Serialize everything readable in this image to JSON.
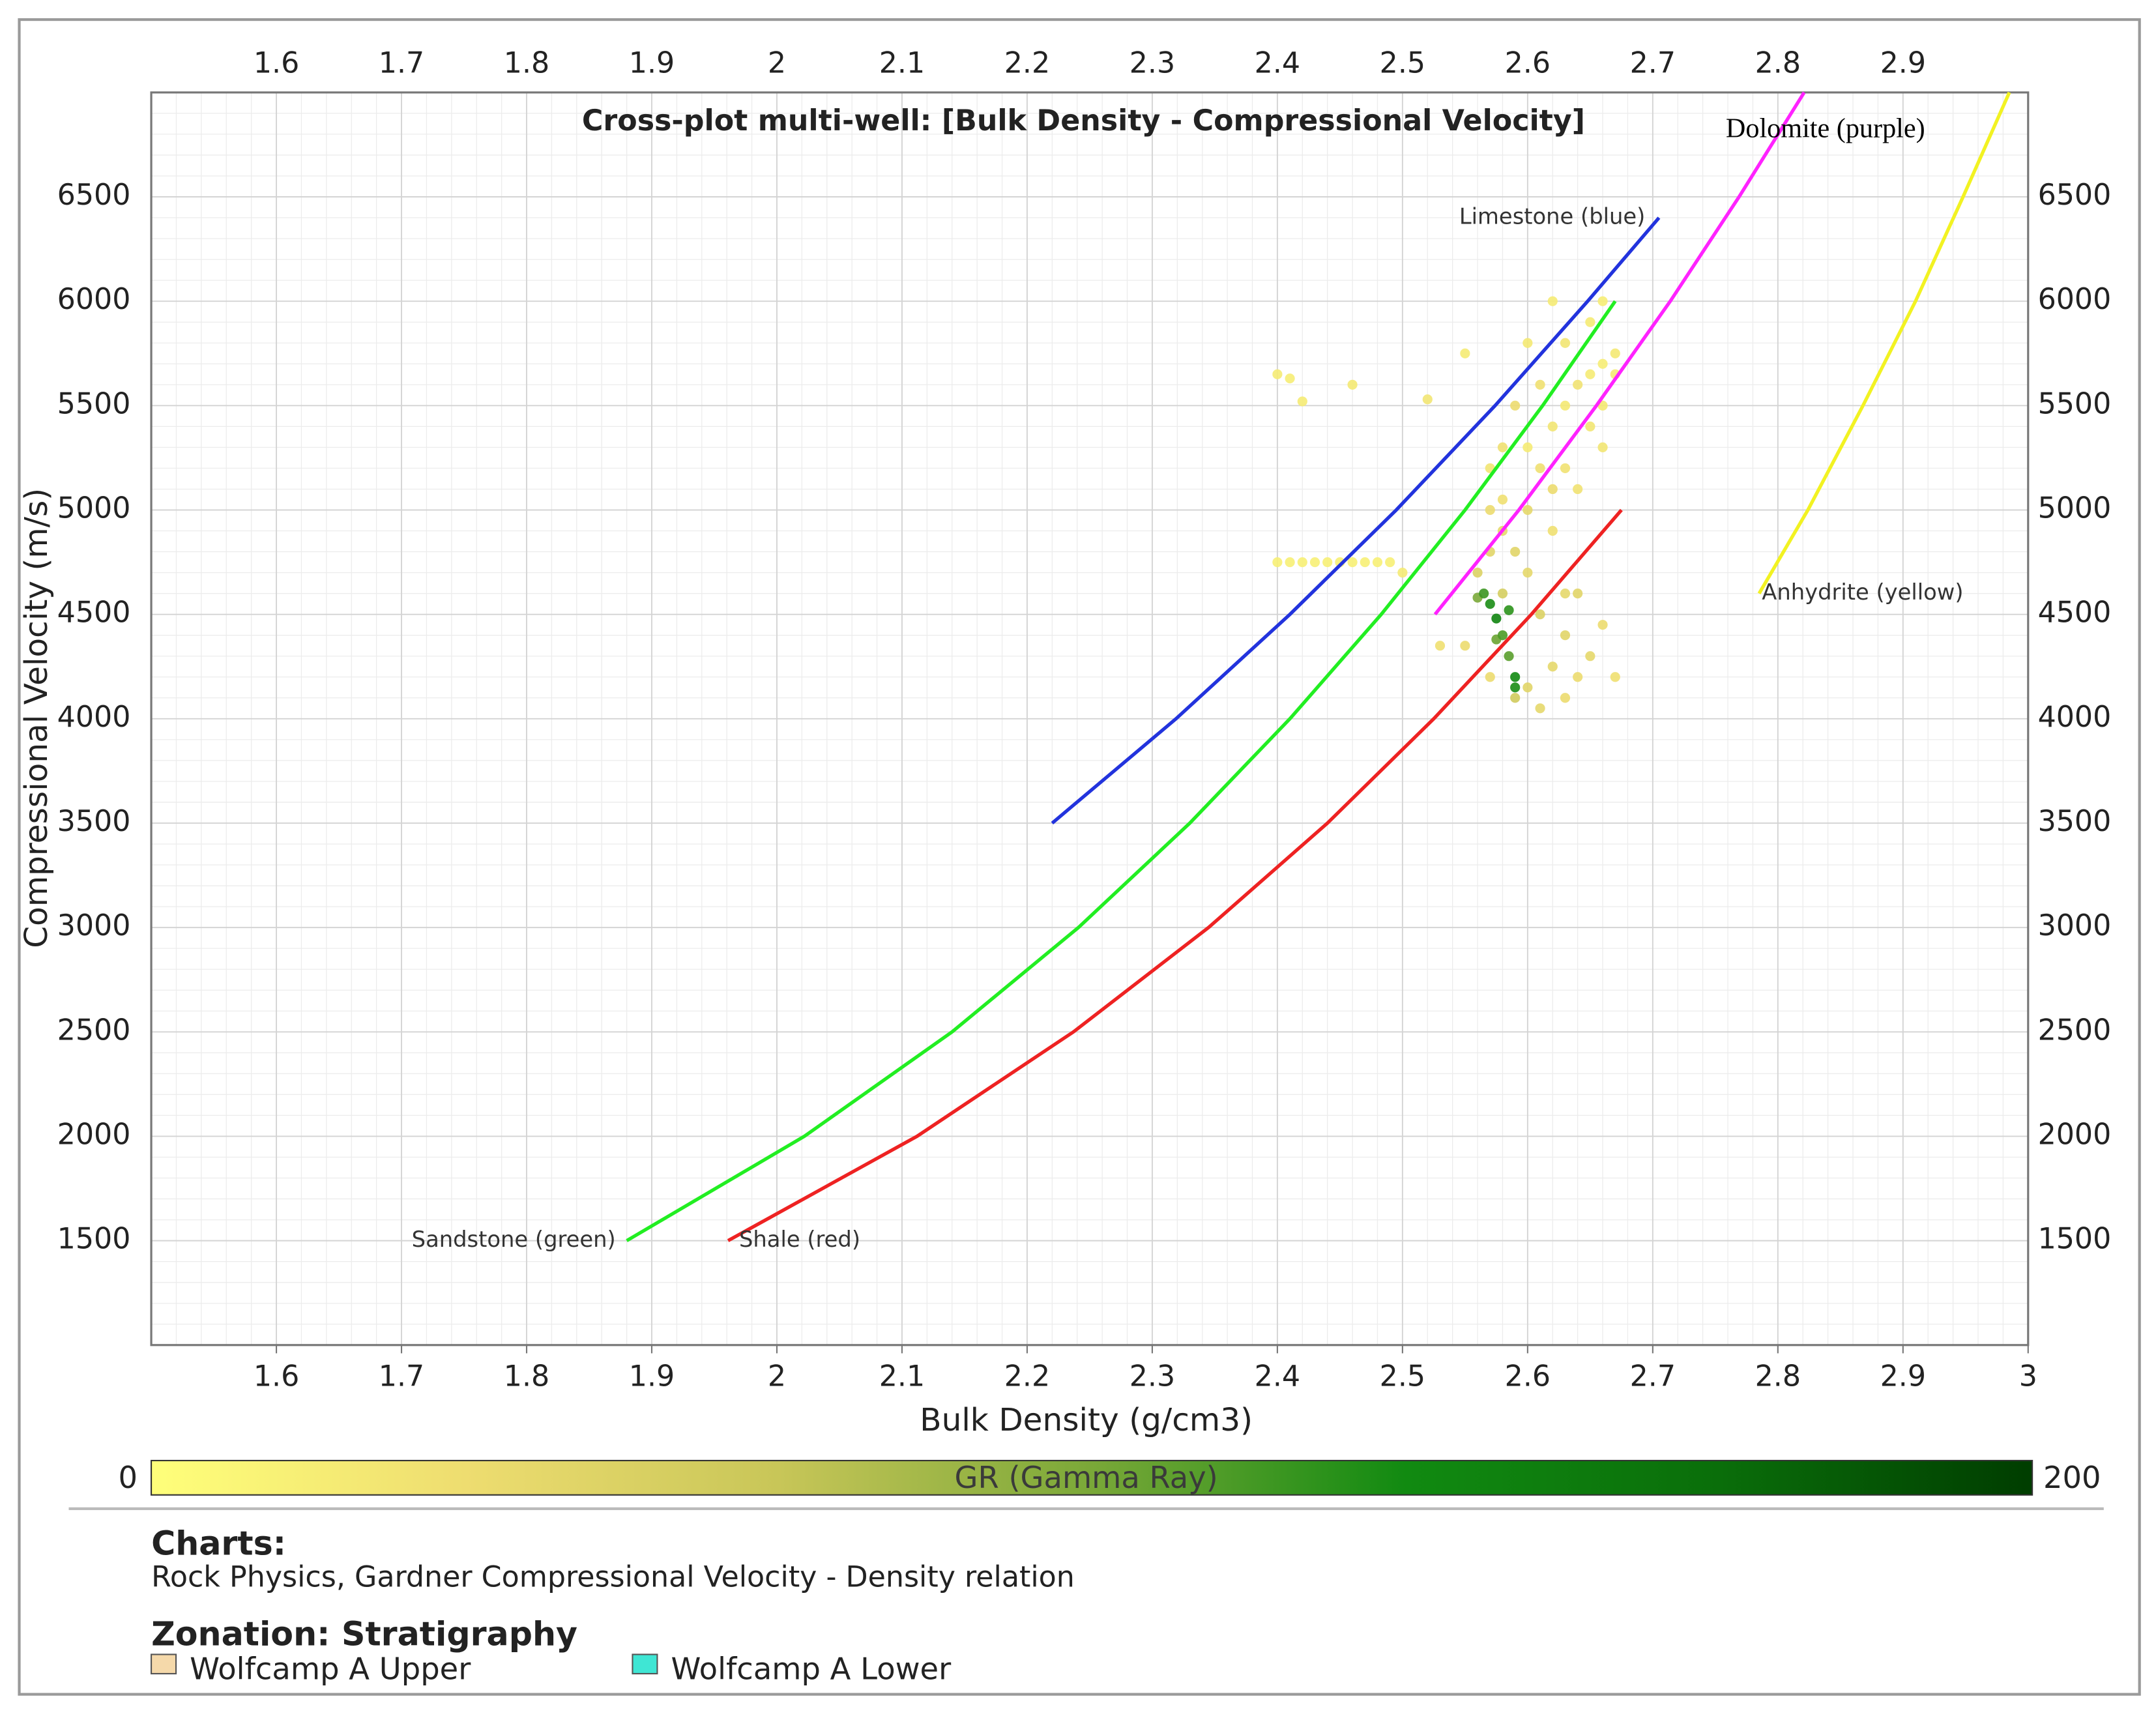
{
  "chart_data": {
    "type": "scatter",
    "title": "Cross-plot multi-well: [Bulk Density - Compressional Velocity]",
    "x_label": "Bulk Density (g/cm3)",
    "y_label": "Compressional Velocity (m/s)",
    "xlim": [
      1.5,
      3.0
    ],
    "ylim": [
      1000,
      7000
    ],
    "xticks": [
      1.6,
      1.7,
      1.8,
      1.9,
      2,
      2.1,
      2.2,
      2.3,
      2.4,
      2.5,
      2.6,
      2.7,
      2.8,
      2.9,
      3
    ],
    "x2ticks": [
      1.6,
      1.7,
      1.8,
      1.9,
      2,
      2.1,
      2.2,
      2.3,
      2.4,
      2.5,
      2.6,
      2.7,
      2.8,
      2.9
    ],
    "yticks": [
      1500,
      2000,
      2500,
      3000,
      3500,
      4000,
      4500,
      5000,
      5500,
      6000,
      6500
    ],
    "y2ticks": [
      1500,
      2000,
      2500,
      3000,
      3500,
      4000,
      4500,
      5000,
      5500,
      6000,
      6500
    ],
    "grid": true,
    "minor_grid": true,
    "colorbar": {
      "label": "GR (Gamma Ray)",
      "min": 0,
      "max": 200,
      "colors": [
        "#ffff7a",
        "#eedd70",
        "#c8c658",
        "#7aa838",
        "#118a11",
        "#0a6e0a",
        "#003d00"
      ]
    },
    "points": {
      "x": [
        2.57,
        2.58,
        2.6,
        2.62,
        2.63,
        2.64,
        2.65,
        2.66,
        2.67,
        2.65,
        2.66,
        2.63,
        2.61,
        2.59,
        2.58,
        2.57,
        2.56,
        2.58,
        2.6,
        2.62,
        2.64,
        2.66,
        2.62,
        2.6,
        2.59,
        2.61,
        2.63,
        2.65,
        2.66,
        2.67,
        2.64,
        2.62,
        2.6,
        2.59,
        2.61,
        2.55,
        2.53,
        2.57,
        2.63,
        2.58,
        2.57,
        2.61,
        2.63,
        2.65,
        2.66,
        2.67,
        2.63,
        2.64,
        2.6,
        2.62,
        2.565,
        2.57,
        2.575,
        2.58,
        2.585,
        2.59,
        2.59,
        2.585,
        2.56,
        2.575,
        2.4,
        2.41,
        2.42,
        2.46,
        2.52,
        2.55,
        2.4,
        2.41,
        2.42,
        2.43,
        2.44,
        2.45,
        2.46,
        2.47,
        2.48,
        2.49,
        2.5
      ],
      "y": [
        5200,
        5050,
        5300,
        5400,
        5500,
        5600,
        5650,
        5700,
        5750,
        5900,
        6000,
        5800,
        5600,
        5500,
        4900,
        4800,
        4700,
        4600,
        4700,
        4900,
        5100,
        5300,
        5100,
        5000,
        4800,
        4500,
        4400,
        4300,
        4450,
        4200,
        4200,
        4250,
        4150,
        4100,
        4050,
        4350,
        4350,
        4200,
        4600,
        5300,
        5000,
        5200,
        5200,
        5400,
        5500,
        5650,
        4100,
        4600,
        5800,
        6000,
        4600,
        4550,
        4480,
        4400,
        4520,
        4200,
        4150,
        4300,
        4580,
        4380,
        5650,
        5630,
        5520,
        5600,
        5530,
        5750,
        4750,
        4750,
        4750,
        4750,
        4750,
        4750,
        4750,
        4750,
        4750,
        4750,
        4700
      ],
      "values": [
        25,
        30,
        20,
        25,
        22,
        28,
        20,
        18,
        22,
        20,
        18,
        25,
        30,
        35,
        40,
        45,
        50,
        55,
        40,
        30,
        28,
        25,
        35,
        40,
        45,
        50,
        45,
        40,
        35,
        30,
        35,
        40,
        45,
        60,
        40,
        35,
        30,
        35,
        40,
        30,
        35,
        30,
        28,
        25,
        22,
        20,
        35,
        45,
        22,
        20,
        120,
        130,
        140,
        115,
        125,
        135,
        130,
        110,
        100,
        105,
        20,
        18,
        20,
        22,
        25,
        20,
        15,
        15,
        15,
        15,
        15,
        15,
        15,
        15,
        15,
        15,
        20
      ]
    },
    "curves": [
      {
        "name": "Sandstone (green)",
        "color": "#22ee22",
        "x": [
          1.88,
          2.022,
          2.14,
          2.241,
          2.33,
          2.41,
          2.483,
          2.55,
          2.612,
          2.67
        ],
        "y": [
          1500,
          2000,
          2500,
          3000,
          3500,
          4000,
          4500,
          5000,
          5500,
          6000
        ]
      },
      {
        "name": "Shale (red)",
        "color": "#ee2222",
        "x": [
          1.961,
          2.112,
          2.237,
          2.345,
          2.44,
          2.525,
          2.603,
          2.675
        ],
        "y": [
          1500,
          2000,
          2500,
          3000,
          3500,
          4000,
          4500,
          5000
        ]
      },
      {
        "name": "Limestone (blue)",
        "color": "#2233dd",
        "x": [
          2.22,
          2.319,
          2.41,
          2.495,
          2.574,
          2.648,
          2.705
        ],
        "y": [
          3500,
          4000,
          4500,
          5000,
          5500,
          6000,
          6400
        ]
      },
      {
        "name": "Dolomite (purple)",
        "color": "#ff22ff",
        "x": [
          2.526,
          2.593,
          2.655,
          2.714,
          2.769,
          2.821
        ],
        "y": [
          4500,
          5000,
          5500,
          6000,
          6500,
          7000
        ]
      },
      {
        "name": "Anhydrite (yellow)",
        "color": "#f2f222",
        "x": [
          2.785,
          2.824,
          2.868,
          2.91,
          2.948,
          2.985
        ],
        "y": [
          4600,
          5000,
          5500,
          6000,
          6500,
          7000
        ]
      }
    ]
  },
  "notes": {
    "charts_title": "Charts:",
    "charts_text": "Rock Physics, Gardner Compressional Velocity - Density relation",
    "zonation_title": "Zonation: Stratigraphy",
    "zonation_items": [
      {
        "name": "Wolfcamp A Upper",
        "color": "#f5d9aa"
      },
      {
        "name": "Wolfcamp A Lower",
        "color": "#3fe6d4"
      }
    ]
  }
}
